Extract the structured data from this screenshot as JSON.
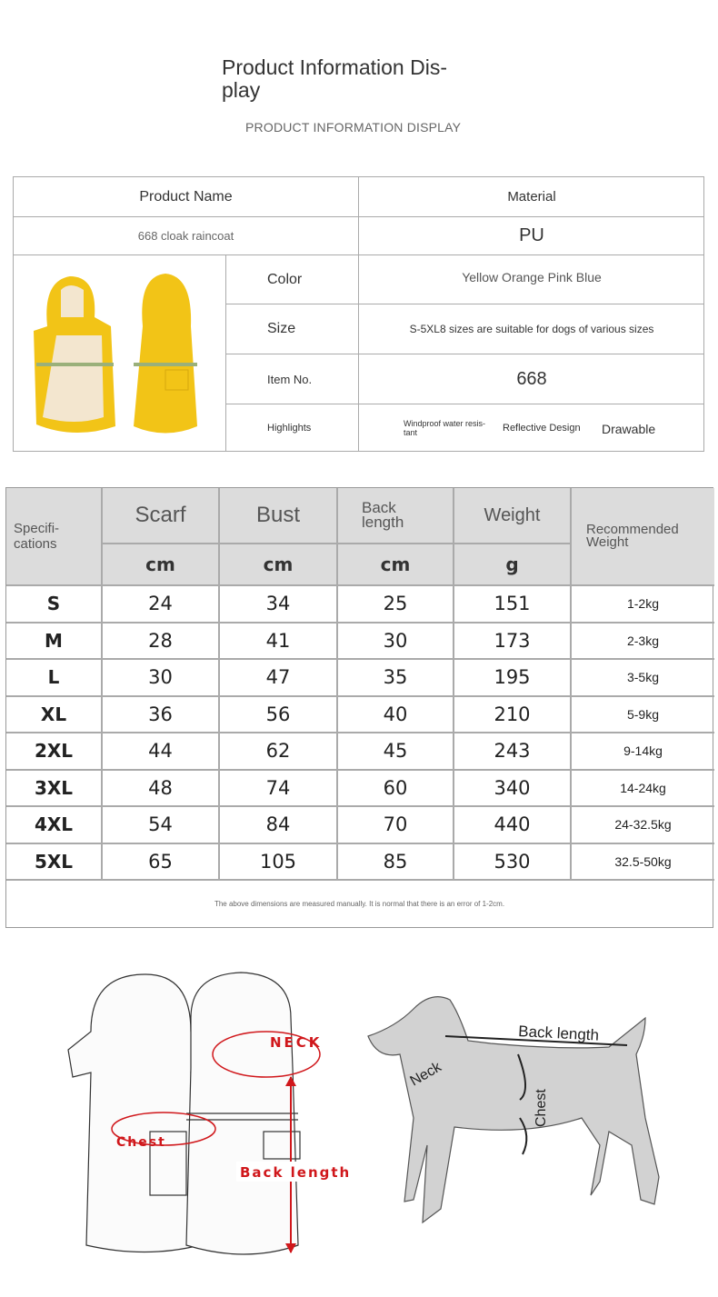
{
  "header": {
    "title": "Product Information Dis-play",
    "subtitle": "PRODUCT INFORMATION DISPLAY"
  },
  "info": {
    "product_name_label": "Product Name",
    "material_label": "Material",
    "product_name": "668 cloak raincoat",
    "material": "PU",
    "color_label": "Color",
    "color": "Yellow Orange Pink Blue",
    "size_label": "Size",
    "size": "S-5XL8 sizes are suitable for dogs of various sizes",
    "item_label": "Item No.",
    "item": "668",
    "highlights_label": "Highlights",
    "highlights": [
      "Windproof water resis-tant",
      "Reflective Design",
      "Drawable"
    ],
    "product_color": "#f2c417"
  },
  "spec": {
    "headers": {
      "spec": "Specifi-cations",
      "scarf": "Scarf",
      "bust": "Bust",
      "back": "Back length",
      "weight": "Weight",
      "recommended": "Recommended Weight"
    },
    "units": [
      "cm",
      "cm",
      "cm",
      "g"
    ],
    "rows": [
      {
        "size": "S",
        "scarf": "24",
        "bust": "34",
        "back": "25",
        "weight": "151",
        "rec": "1-2kg"
      },
      {
        "size": "M",
        "scarf": "28",
        "bust": "41",
        "back": "30",
        "weight": "173",
        "rec": "2-3kg"
      },
      {
        "size": "L",
        "scarf": "30",
        "bust": "47",
        "back": "35",
        "weight": "195",
        "rec": "3-5kg"
      },
      {
        "size": "XL",
        "scarf": "36",
        "bust": "56",
        "back": "40",
        "weight": "210",
        "rec": "5-9kg"
      },
      {
        "size": "2XL",
        "scarf": "44",
        "bust": "62",
        "back": "45",
        "weight": "243",
        "rec": "9-14kg"
      },
      {
        "size": "3XL",
        "scarf": "48",
        "bust": "74",
        "back": "60",
        "weight": "340",
        "rec": "14-24kg"
      },
      {
        "size": "4XL",
        "scarf": "54",
        "bust": "84",
        "back": "70",
        "weight": "440",
        "rec": "24-32.5kg"
      },
      {
        "size": "5XL",
        "scarf": "65",
        "bust": "105",
        "back": "85",
        "weight": "530",
        "rec": "32.5-50kg"
      }
    ],
    "note": "The above dimensions are measured manually. It is normal that there is an error of 1-2cm."
  },
  "diagram": {
    "neck": "NECK",
    "chest": "Chest",
    "back_length": "Back length",
    "dog_back": "Back length",
    "dog_neck": "Neck",
    "dog_chest": "Chest",
    "accent": "#d0171b"
  }
}
